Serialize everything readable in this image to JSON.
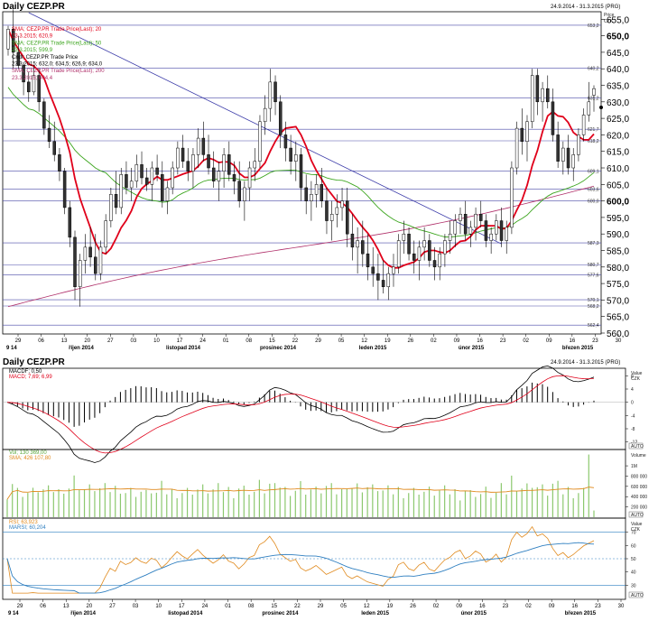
{
  "top": {
    "title": "Daily CEZP.PR",
    "range": "24.9.2014 - 31.3.2015 (PRG)",
    "axis_title": [
      "Price",
      "CZK"
    ],
    "legend": [
      {
        "text": "SMA; CEZP.PR Trade Price(Last); 20",
        "color": "#e0001a"
      },
      {
        "text": "23.3.2015; 620,9",
        "color": "#e0001a"
      },
      {
        "text": "SMA; CEZP.PR Trade Price(Last); 50",
        "color": "#3ca51e"
      },
      {
        "text": "23.3.2015; 599,9",
        "color": "#3ca51e"
      },
      {
        "text": "Cndl; CEZP.PR Trade Price",
        "color": "#000000"
      },
      {
        "text": "23.3.2015; 632,0; 634,5; 626,9; 634,0",
        "color": "#000000"
      },
      {
        "text": "SMA; CEZP.PR Trade Price(Last); 200",
        "color": "#b0306a"
      },
      {
        "text": "23.3.2015; 604,4",
        "color": "#b0306a"
      }
    ],
    "hline_labels": [
      "653,2",
      "640,2",
      "631,2",
      "621,7",
      "618,2",
      "609,1",
      "603,6",
      "600,0",
      "587,3",
      "580,7",
      "577,6",
      "570,1",
      "568,2",
      "562,4"
    ],
    "y_ticks": [
      "655,0",
      "650,0",
      "645,0",
      "640,0",
      "635,0",
      "630,0",
      "625,0",
      "620,0",
      "615,0",
      "610,0",
      "605,0",
      "600,0",
      "595,0",
      "590,0",
      "585,0",
      "580,0",
      "575,0",
      "570,0",
      "565,0",
      "560,0"
    ]
  },
  "bottom": {
    "title": "Daily CEZP.PR",
    "range": "24.9.2014 - 31.3.2015 (PRG)",
    "macd_legend": [
      {
        "text": "MACDF; 0,50",
        "color": "#000000"
      },
      {
        "text": "MACD; 7,69; 6,99",
        "color": "#e0001a"
      }
    ],
    "macd_axis_title": [
      "Value",
      "CZK"
    ],
    "macd_ticks": [
      "8",
      "4",
      "0",
      "-4",
      "-8",
      "-12"
    ],
    "vol_legend": [
      {
        "text": "Vol; 130 369,00",
        "color": "#5aa83c"
      },
      {
        "text": "SMA; 426 107,80",
        "color": "#e08a1e"
      }
    ],
    "vol_axis_title": [
      "Volume"
    ],
    "vol_ticks": [
      "1M",
      "800 000",
      "600 000",
      "400 000",
      "200 000"
    ],
    "rsi_legend": [
      {
        "text": "RSI; 63,923",
        "color": "#e08a1e"
      },
      {
        "text": "MARSI; 60,204",
        "color": "#2f7fc0"
      }
    ],
    "rsi_axis_title": [
      "Value",
      "CZK"
    ],
    "rsi_ticks": [
      "70",
      "60",
      "50",
      "40",
      "30"
    ],
    "auto": "AUTO"
  },
  "x_ticks": [
    "29",
    "06",
    "13",
    "20",
    "27",
    "03",
    "10",
    "17",
    "24",
    "01",
    "08",
    "15",
    "22",
    "29",
    "05",
    "12",
    "19",
    "26",
    "02",
    "09",
    "16",
    "23",
    "02",
    "09",
    "16",
    "23",
    "30"
  ],
  "x_months": [
    "9 14",
    "říjen 2014",
    "listopad 2014",
    "prosinec 2014",
    "leden 2015",
    "únor 2015",
    "březen 2015"
  ],
  "chart_data": [
    {
      "type": "candlestick",
      "title": "Daily CEZP.PR",
      "subtitle": "24.9.2014 - 31.3.2015 (PRG)",
      "ylabel": "Price CZK",
      "ylim": [
        560,
        657
      ],
      "candles_approx": [
        [
          646,
          653,
          644,
          652
        ],
        [
          652,
          658,
          640,
          645
        ],
        [
          645,
          650,
          640,
          641
        ],
        [
          641,
          642,
          632,
          636
        ],
        [
          636,
          639,
          630,
          633
        ],
        [
          633,
          641,
          632,
          638
        ],
        [
          638,
          640,
          627,
          630
        ],
        [
          630,
          631,
          620,
          622
        ],
        [
          622,
          626,
          616,
          618
        ],
        [
          618,
          624,
          612,
          614
        ],
        [
          614,
          616,
          606,
          609
        ],
        [
          609,
          610,
          596,
          598
        ],
        [
          598,
          600,
          586,
          589
        ],
        [
          589,
          591,
          570,
          574
        ],
        [
          574,
          584,
          568,
          582
        ],
        [
          582,
          590,
          578,
          586
        ],
        [
          586,
          592,
          580,
          583
        ],
        [
          583,
          590,
          576,
          578
        ],
        [
          578,
          588,
          576,
          586
        ],
        [
          586,
          596,
          584,
          594
        ],
        [
          594,
          604,
          592,
          602
        ],
        [
          602,
          609,
          596,
          598
        ],
        [
          598,
          610,
          596,
          608
        ],
        [
          608,
          612,
          602,
          604
        ],
        [
          604,
          610,
          600,
          606
        ],
        [
          606,
          614,
          604,
          611
        ],
        [
          611,
          615,
          605,
          607
        ],
        [
          607,
          610,
          603,
          605
        ],
        [
          605,
          612,
          600,
          610
        ],
        [
          610,
          614,
          606,
          608
        ],
        [
          608,
          612,
          598,
          600
        ],
        [
          600,
          606,
          596,
          604
        ],
        [
          604,
          612,
          602,
          610
        ],
        [
          610,
          618,
          608,
          616
        ],
        [
          616,
          620,
          610,
          612
        ],
        [
          612,
          616,
          606,
          609
        ],
        [
          609,
          616,
          604,
          614
        ],
        [
          614,
          622,
          610,
          619
        ],
        [
          619,
          624,
          612,
          614
        ],
        [
          614,
          620,
          608,
          610
        ],
        [
          610,
          615,
          604,
          606
        ],
        [
          606,
          612,
          600,
          609
        ],
        [
          609,
          616,
          604,
          614
        ],
        [
          614,
          618,
          606,
          608
        ],
        [
          608,
          612,
          602,
          606
        ],
        [
          606,
          612,
          598,
          600
        ],
        [
          600,
          606,
          594,
          604
        ],
        [
          604,
          612,
          600,
          610
        ],
        [
          610,
          616,
          606,
          612
        ],
        [
          612,
          626,
          610,
          624
        ],
        [
          624,
          632,
          620,
          628
        ],
        [
          628,
          640,
          624,
          636
        ],
        [
          636,
          638,
          626,
          630
        ],
        [
          630,
          632,
          616,
          620
        ],
        [
          620,
          624,
          612,
          616
        ],
        [
          616,
          620,
          608,
          612
        ],
        [
          612,
          618,
          606,
          614
        ],
        [
          614,
          616,
          600,
          604
        ],
        [
          604,
          608,
          596,
          600
        ],
        [
          600,
          606,
          594,
          602
        ],
        [
          602,
          608,
          598,
          605
        ],
        [
          605,
          610,
          598,
          600
        ],
        [
          600,
          604,
          590,
          594
        ],
        [
          594,
          600,
          588,
          596
        ],
        [
          596,
          602,
          592,
          598
        ],
        [
          598,
          604,
          594,
          600
        ],
        [
          600,
          604,
          586,
          590
        ],
        [
          590,
          596,
          582,
          586
        ],
        [
          586,
          592,
          578,
          588
        ],
        [
          588,
          594,
          580,
          584
        ],
        [
          584,
          590,
          576,
          580
        ],
        [
          580,
          586,
          574,
          578
        ],
        [
          578,
          584,
          570,
          576
        ],
        [
          576,
          582,
          572,
          574
        ],
        [
          574,
          580,
          570,
          578
        ],
        [
          578,
          584,
          574,
          580
        ],
        [
          580,
          590,
          578,
          588
        ],
        [
          588,
          594,
          584,
          590
        ],
        [
          590,
          592,
          582,
          584
        ],
        [
          584,
          588,
          578,
          582
        ],
        [
          582,
          588,
          576,
          586
        ],
        [
          586,
          592,
          582,
          588
        ],
        [
          588,
          590,
          580,
          582
        ],
        [
          582,
          586,
          576,
          580
        ],
        [
          580,
          586,
          576,
          584
        ],
        [
          584,
          590,
          580,
          588
        ],
        [
          588,
          594,
          584,
          590
        ],
        [
          590,
          596,
          586,
          594
        ],
        [
          594,
          598,
          590,
          596
        ],
        [
          596,
          600,
          588,
          590
        ],
        [
          590,
          594,
          586,
          592
        ],
        [
          592,
          598,
          588,
          596
        ],
        [
          596,
          600,
          592,
          594
        ],
        [
          594,
          596,
          586,
          588
        ],
        [
          588,
          592,
          584,
          590
        ],
        [
          590,
          596,
          588,
          594
        ],
        [
          594,
          598,
          586,
          588
        ],
        [
          588,
          594,
          584,
          592
        ],
        [
          592,
          612,
          590,
          610
        ],
        [
          610,
          624,
          608,
          622
        ],
        [
          622,
          628,
          614,
          618
        ],
        [
          618,
          626,
          612,
          624
        ],
        [
          624,
          640,
          622,
          638
        ],
        [
          638,
          640,
          626,
          630
        ],
        [
          630,
          636,
          624,
          634
        ],
        [
          634,
          638,
          628,
          630
        ],
        [
          630,
          634,
          618,
          620
        ],
        [
          620,
          624,
          610,
          612
        ],
        [
          612,
          618,
          608,
          616
        ],
        [
          616,
          620,
          608,
          610
        ],
        [
          610,
          616,
          606,
          614
        ],
        [
          614,
          622,
          612,
          620
        ],
        [
          620,
          628,
          618,
          626
        ],
        [
          626,
          636,
          624,
          630
        ],
        [
          632,
          635,
          627,
          634
        ]
      ],
      "series": [
        {
          "name": "SMA; CEZP.PR Trade Price(Last); 20",
          "last": 620.9
        },
        {
          "name": "SMA; CEZP.PR Trade Price(Last); 50",
          "last": 599.9
        },
        {
          "name": "SMA; CEZP.PR Trade Price(Last); 200",
          "last": 604.4
        }
      ],
      "horizontal_lines": [
        653.2,
        640.2,
        631.2,
        621.7,
        618.2,
        609.1,
        603.6,
        600.0,
        587.3,
        580.7,
        577.6,
        570.1,
        568.2,
        562.4
      ],
      "last_candle": {
        "date": "23.3.2015",
        "open": 632.0,
        "high": 634.5,
        "low": 626.9,
        "close": 634.0
      }
    },
    {
      "type": "line",
      "ylabel": "Value CZK",
      "ylim": [
        -14,
        10
      ],
      "series": [
        {
          "name": "MACDF; 0,50"
        },
        {
          "name": "MACD; 7,69; 6,99"
        }
      ]
    },
    {
      "type": "bar",
      "ylabel": "Volume",
      "ylim": [
        0,
        1300000
      ],
      "series": [
        {
          "name": "Vol; 130 369,00"
        },
        {
          "name": "SMA; 426 107,80"
        }
      ]
    },
    {
      "type": "line",
      "ylabel": "Value CZK",
      "ylim": [
        20,
        80
      ],
      "series": [
        {
          "name": "RSI; 63,923"
        },
        {
          "name": "MARSI; 60,204"
        }
      ]
    }
  ],
  "colors": {
    "sma20": "#e0001a",
    "sma50": "#3ca51e",
    "sma200": "#b0306a",
    "trend": "#3a3aa8",
    "hline": "#4a4aa8",
    "vol": "#8cc86e",
    "volsma": "#e08a1e",
    "rsi": "#e08a1e",
    "marsi": "#2f7fc0"
  }
}
